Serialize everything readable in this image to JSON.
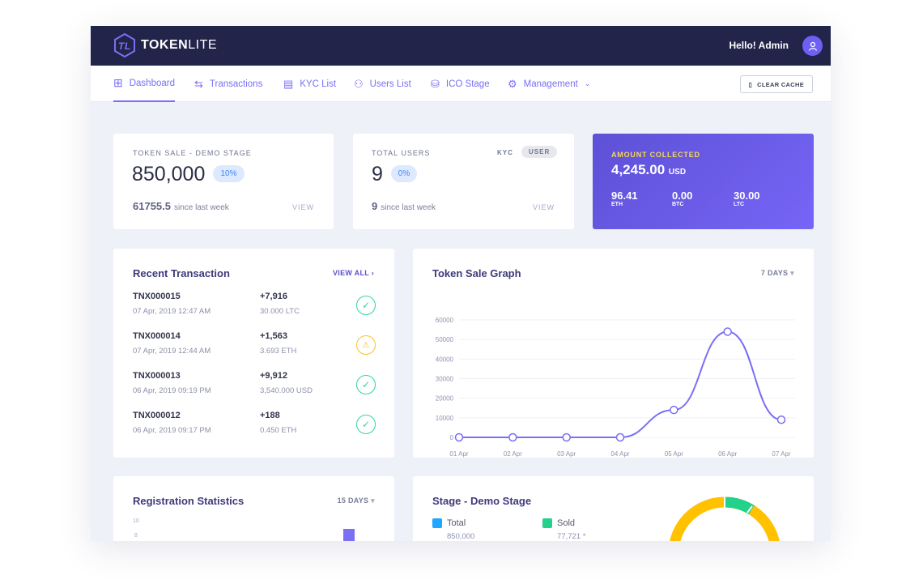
{
  "header": {
    "brand_bold": "TOKEN",
    "brand_light": "LITE",
    "greeting": "Hello! Admin"
  },
  "nav": {
    "items": [
      {
        "label": "Dashboard",
        "icon": "grid-icon",
        "active": true
      },
      {
        "label": "Transactions",
        "icon": "swap-icon"
      },
      {
        "label": "KYC List",
        "icon": "document-icon"
      },
      {
        "label": "Users List",
        "icon": "user-icon"
      },
      {
        "label": "ICO Stage",
        "icon": "coins-icon"
      },
      {
        "label": "Management",
        "icon": "gear-icon"
      }
    ],
    "clear_cache": "CLEAR CACHE"
  },
  "token_sale": {
    "label": "TOKEN SALE - DEMO STAGE",
    "value": "850,000",
    "badge": "10%",
    "weekly": "61755.5",
    "weekly_text": "since last week",
    "view": "VIEW"
  },
  "users": {
    "label": "TOTAL USERS",
    "tab_kyc": "KYC",
    "tab_user": "USER",
    "value": "9",
    "badge": "0%",
    "weekly": "9",
    "weekly_text": "since last week",
    "view": "VIEW"
  },
  "amount": {
    "label": "AMOUNT COLLECTED",
    "value": "4,245.00",
    "unit": "USD",
    "coins": [
      {
        "value": "96.41",
        "code": "ETH"
      },
      {
        "value": "0.00",
        "code": "BTC"
      },
      {
        "value": "30.00",
        "code": "LTC"
      }
    ]
  },
  "transactions": {
    "title": "Recent Transaction",
    "view_all": "VIEW ALL",
    "items": [
      {
        "id": "TNX000015",
        "date": "07 Apr, 2019 12:47 AM",
        "amount": "+7,916",
        "currency": "30.000 LTC",
        "status": "success"
      },
      {
        "id": "TNX000014",
        "date": "07 Apr, 2019 12:44 AM",
        "amount": "+1,563",
        "currency": "3.693 ETH",
        "status": "pending"
      },
      {
        "id": "TNX000013",
        "date": "06 Apr, 2019 09:19 PM",
        "amount": "+9,912",
        "currency": "3,540.000 USD",
        "status": "success"
      },
      {
        "id": "TNX000012",
        "date": "06 Apr, 2019 09:17 PM",
        "amount": "+188",
        "currency": "0.450 ETH",
        "status": "success"
      }
    ]
  },
  "graph": {
    "title": "Token Sale Graph",
    "range": "7 DAYS"
  },
  "chart_data": {
    "type": "line",
    "categories": [
      "01 Apr",
      "02 Apr",
      "03 Apr",
      "04 Apr",
      "05 Apr",
      "06 Apr",
      "07 Apr"
    ],
    "values": [
      0,
      0,
      0,
      0,
      14000,
      54000,
      9000
    ],
    "ylim": [
      0,
      60000
    ],
    "yticks": [
      "60000",
      "50000",
      "40000",
      "30000",
      "20000",
      "10000",
      "0"
    ],
    "grid": true,
    "color": "#7a6ff5"
  },
  "registration": {
    "title": "Registration Statistics",
    "range": "15 DAYS",
    "yticks": [
      "10",
      "8"
    ]
  },
  "stage": {
    "title": "Stage - Demo Stage",
    "total_label": "Total",
    "total_value": "850,000",
    "sold_label": "Sold",
    "sold_value": "77,721 *",
    "colors": {
      "total": "#1ea7fd",
      "sold": "#22d18b",
      "remaining": "#ffc100"
    }
  }
}
